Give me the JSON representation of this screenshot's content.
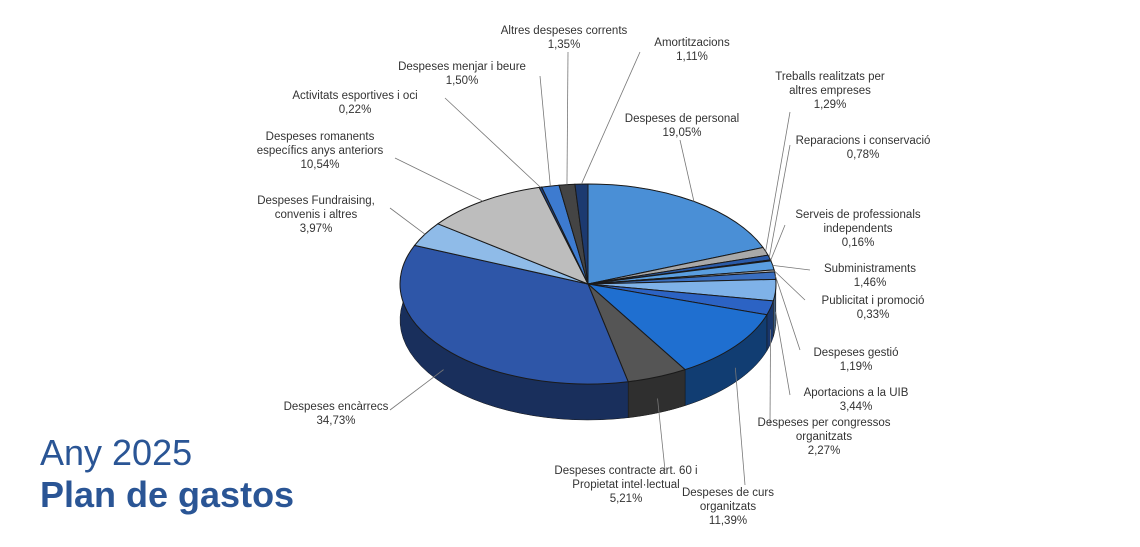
{
  "chart_data": {
    "type": "pie",
    "title": "Plan de gastos",
    "subtitle": "Any 2025",
    "categories": [
      "Despeses de personal",
      "Treballs realitzats per altres empreses",
      "Reparacions i conservació",
      "Serveis de professionals independents",
      "Subministraments",
      "Publicitat i promoció",
      "Despeses gestió",
      "Aportacions a la UIB",
      "Despeses per congressos organitzats",
      "Despeses de curs organitzats",
      "Despeses contracte art. 60 i Propietat intel·lectual",
      "Despeses encàrrecs",
      "Despeses Fundraising, convenis i altres",
      "Despeses romanents específics anys anteriors",
      "Activitats esportives i oci",
      "Despeses menjar i beure",
      "Altres despeses corrents",
      "Amortitzacions"
    ],
    "values": [
      19.05,
      1.29,
      0.78,
      0.16,
      1.46,
      0.33,
      1.19,
      3.44,
      2.27,
      11.39,
      5.21,
      34.73,
      3.97,
      10.54,
      0.22,
      1.5,
      1.35,
      1.11
    ],
    "value_labels": [
      "19,05%",
      "1,29%",
      "0,78%",
      "0,16%",
      "1,46%",
      "0,33%",
      "1,19%",
      "3,44%",
      "2,27%",
      "11,39%",
      "5,21%",
      "34,73%",
      "3,97%",
      "10,54%",
      "0,22%",
      "1,50%",
      "1,35%",
      "1,11%"
    ],
    "colors": [
      "#4a8fd6",
      "#a9a9a9",
      "#2a5aa8",
      "#8a8a8a",
      "#5a9ee0",
      "#b8b8b8",
      "#3a6fc0",
      "#7fb2e8",
      "#2c63c4",
      "#1f6fd0",
      "#555555",
      "#2e56a8",
      "#8fbbe8",
      "#bdbdbd",
      "#1a3f80",
      "#3d7bd0",
      "#444444",
      "#1c3a70"
    ]
  }
}
